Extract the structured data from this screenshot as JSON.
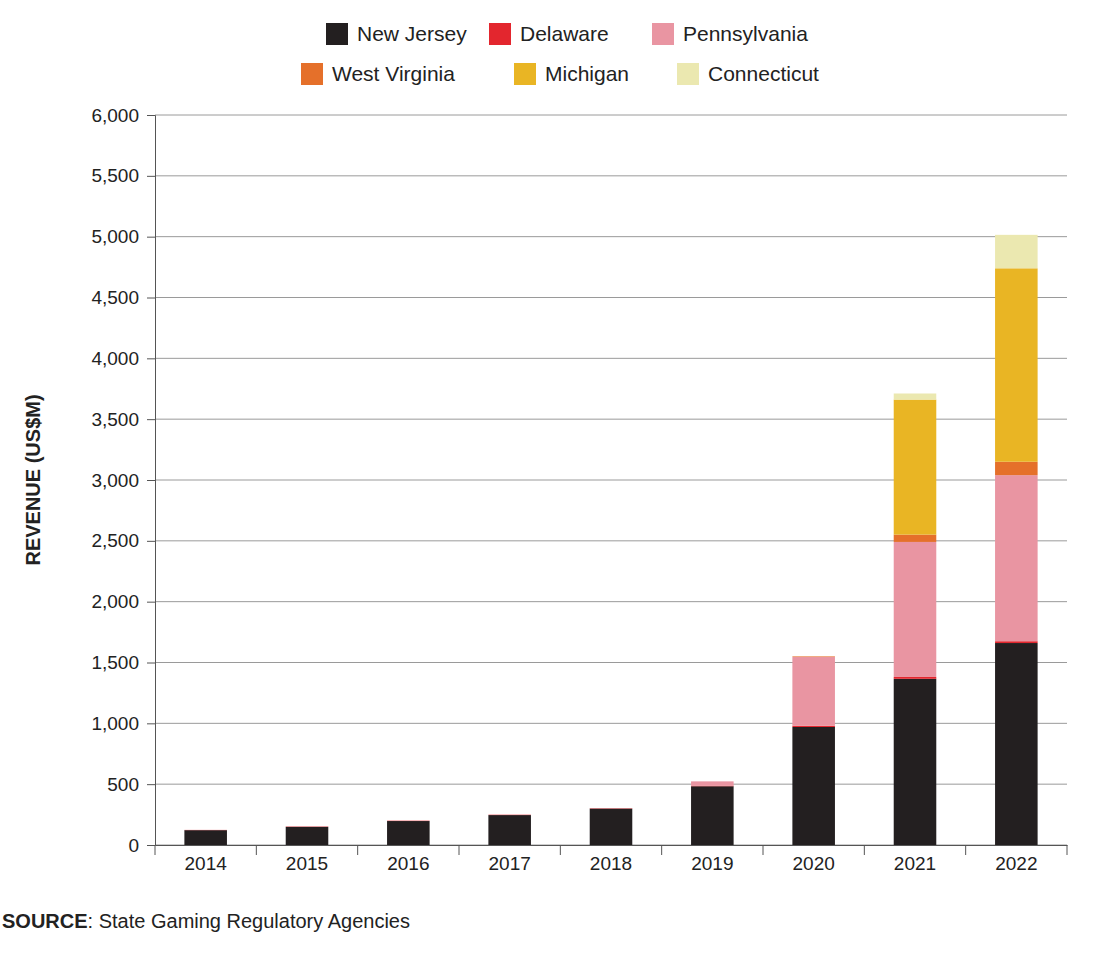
{
  "chart_data": {
    "type": "bar",
    "stacked": true,
    "grid": true,
    "legend": "top",
    "y_label": "REVENUE (US$M)",
    "source": "SOURCE: State Gaming Regulatory Agencies",
    "categories": [
      "2014",
      "2015",
      "2016",
      "2017",
      "2018",
      "2019",
      "2020",
      "2021",
      "2022"
    ],
    "ylim": [
      0,
      6000
    ],
    "yticks": [
      0,
      500,
      {
        "value": 1000,
        "label": "1,000"
      },
      {
        "value": 1500,
        "label": "1,500"
      },
      {
        "value": 2000,
        "label": "2,000"
      },
      {
        "value": 2500,
        "label": "2,500"
      },
      {
        "value": 3000,
        "label": "3,000"
      },
      {
        "value": 3500,
        "label": "3,500"
      },
      {
        "value": 4000,
        "label": "4,000"
      },
      {
        "value": 4500,
        "label": "4,500"
      },
      {
        "value": 5000,
        "label": "5,000"
      },
      {
        "value": 5500,
        "label": "5,500"
      },
      {
        "value": 6000,
        "label": "6,000"
      }
    ],
    "series": [
      {
        "name": "New Jersey",
        "color": "#231f20",
        "values": [
          122,
          149,
          197,
          246,
          299,
          483,
          970,
          1366,
          1660
        ]
      },
      {
        "name": "Delaware",
        "color": "#e3262e",
        "values": [
          2,
          3,
          3,
          3,
          3,
          5,
          10,
          15,
          15
        ]
      },
      {
        "name": "Pennsylvania",
        "color": "#e995a2",
        "values": [
          null,
          null,
          null,
          null,
          null,
          35,
          565,
          1110,
          1365
        ]
      },
      {
        "name": "West Virginia",
        "color": "#e5702a",
        "values": [
          null,
          null,
          null,
          null,
          null,
          null,
          5,
          60,
          110
        ]
      },
      {
        "name": "Michigan",
        "color": "#e9b524",
        "values": [
          null,
          null,
          null,
          null,
          null,
          null,
          null,
          1110,
          1590
        ]
      },
      {
        "name": "Connecticut",
        "color": "#ebe8b0",
        "values": [
          null,
          null,
          null,
          null,
          null,
          null,
          null,
          50,
          275
        ]
      }
    ]
  }
}
